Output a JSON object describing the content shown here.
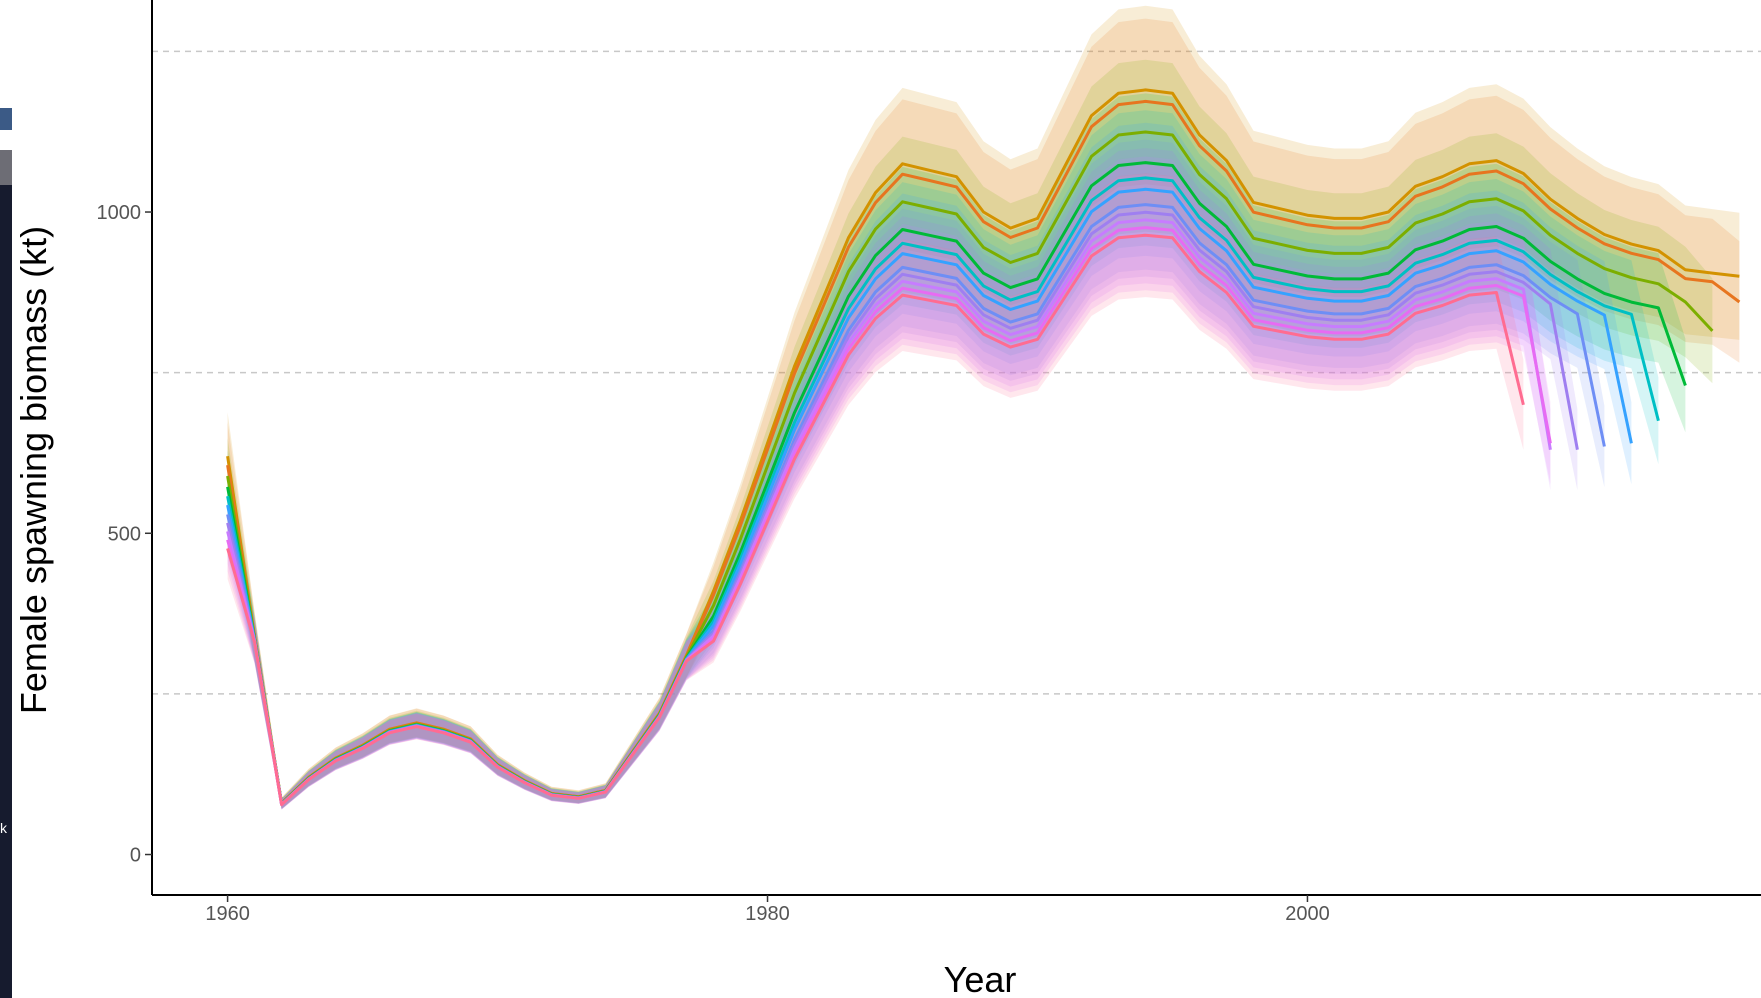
{
  "side_strip": {
    "label": "k"
  },
  "chart_data": {
    "type": "line",
    "title": "",
    "xlabel": "Year",
    "ylabel": "Female spawning biomass (kt)",
    "xlim": [
      1957.2,
      2016.8
    ],
    "ylim": [
      -63,
      1330
    ],
    "x_ticks": [
      1960,
      1980,
      2000
    ],
    "y_ticks": [
      0,
      500,
      1000
    ],
    "grid": {
      "major_y_dashed": [
        250,
        750,
        1250
      ]
    },
    "legend": "none",
    "series": [
      {
        "color": "#D39200",
        "end_year": 2016,
        "end_value": 900,
        "scale": 1.0,
        "band": 0.11
      },
      {
        "color": "#E7751F",
        "end_year": 2016,
        "end_value": 860,
        "scale": 0.985,
        "band": 0.11
      },
      {
        "color": "#7CAE00",
        "end_year": 2015,
        "end_value": 815,
        "scale": 0.945,
        "band": 0.1
      },
      {
        "color": "#00BA38",
        "end_year": 2014,
        "end_value": 730,
        "scale": 0.905,
        "band": 0.1
      },
      {
        "color": "#00BFC4",
        "end_year": 2013,
        "end_value": 675,
        "scale": 0.885,
        "band": 0.1
      },
      {
        "color": "#35A2FF",
        "end_year": 2012,
        "end_value": 640,
        "scale": 0.87,
        "band": 0.1
      },
      {
        "color": "#6E8EF5",
        "end_year": 2011,
        "end_value": 635,
        "scale": 0.85,
        "band": 0.1
      },
      {
        "color": "#9F7FF0",
        "end_year": 2010,
        "end_value": 630,
        "scale": 0.84,
        "band": 0.1
      },
      {
        "color": "#C77CFF",
        "end_year": 2009,
        "end_value": 630,
        "scale": 0.83,
        "band": 0.1
      },
      {
        "color": "#E76BF3",
        "end_year": 2009,
        "end_value": 640,
        "scale": 0.82,
        "band": 0.1
      },
      {
        "color": "#FF6C91",
        "end_year": 2008,
        "end_value": 700,
        "scale": 0.81,
        "band": 0.1
      }
    ],
    "reference_trajectory": {
      "years": [
        1960,
        1961,
        1962,
        1963,
        1964,
        1965,
        1966,
        1967,
        1968,
        1969,
        1970,
        1971,
        1972,
        1973,
        1974,
        1975,
        1976,
        1977,
        1978,
        1979,
        1980,
        1981,
        1982,
        1983,
        1984,
        1985,
        1986,
        1987,
        1988,
        1989,
        1990,
        1991,
        1992,
        1993,
        1994,
        1995,
        1996,
        1997,
        1998,
        1999,
        2000,
        2001,
        2002,
        2003,
        2004,
        2005,
        2006,
        2007,
        2008,
        2009,
        2010,
        2011,
        2012,
        2013,
        2014,
        2015,
        2016
      ],
      "values": [
        620,
        340,
        80,
        120,
        150,
        170,
        195,
        205,
        195,
        180,
        140,
        115,
        95,
        90,
        100,
        160,
        220,
        310,
        410,
        520,
        640,
        760,
        860,
        960,
        1030,
        1075,
        1065,
        1055,
        1000,
        975,
        990,
        1070,
        1150,
        1185,
        1190,
        1185,
        1120,
        1080,
        1015,
        1005,
        995,
        990,
        990,
        1000,
        1040,
        1055,
        1075,
        1080,
        1060,
        1020,
        990,
        965,
        950,
        940,
        910,
        905,
        900
      ]
    }
  }
}
